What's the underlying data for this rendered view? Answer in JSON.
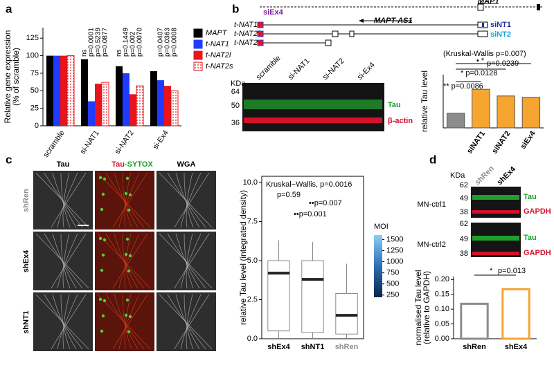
{
  "panel_labels": [
    "a",
    "b",
    "c",
    "d"
  ],
  "gene_diagram": {
    "gene": "MAPT",
    "antisense": "MAPT-AS1",
    "sirnas": [
      "siEx4",
      "siNT1",
      "siNT2"
    ],
    "transcripts": [
      "t-NAT1",
      "t-NAT2l",
      "t-NAT2s"
    ]
  },
  "blot_b": {
    "unit": "KDa",
    "markers": [
      "64",
      "50",
      "36"
    ],
    "lanes": [
      "scramble",
      "si-NAT1",
      "si-NAT2",
      "si-Ex4"
    ],
    "bands": [
      "Tau",
      "β-actin"
    ]
  },
  "micrographs": {
    "columns": [
      "Tau",
      "-SYTOX",
      "WGA"
    ],
    "column_prefix": "Tau",
    "rows": [
      "shRen",
      "shEx4",
      "shNT1"
    ]
  },
  "blot_d": {
    "unit": "KDa",
    "lanes": [
      "shRen",
      "shEx4"
    ],
    "blots": [
      {
        "name": "MN-ctrl1",
        "markers": [
          "62",
          "49",
          "38"
        ],
        "bands": [
          "Tau",
          "GAPDH"
        ]
      },
      {
        "name": "MN-ctrl2",
        "markers": [
          "62",
          "49",
          "38"
        ],
        "bands": [
          "Tau",
          "GAPDH"
        ]
      }
    ]
  },
  "chart_data": [
    {
      "type": "grouped_bar",
      "ylabel": [
        "Relative gene expression",
        "(% of scramble)"
      ],
      "categories": [
        "scramble",
        "si-NAT1",
        "si-NAT2",
        "si-Ex4"
      ],
      "series": [
        {
          "name": "MAPT",
          "color": "#000000",
          "values": [
            100,
            95,
            85,
            78
          ]
        },
        {
          "name": "t-NAT1",
          "color": "#1f3bff",
          "values": [
            100,
            35,
            75,
            65
          ]
        },
        {
          "name": "t-NAT2l",
          "color": "#e8141b",
          "values": [
            100,
            60,
            45,
            57
          ]
        },
        {
          "name": "t-NAT2s",
          "color": "#e8141b",
          "hatch": "dots",
          "values": [
            100,
            62,
            57,
            50
          ]
        }
      ],
      "p_values": [
        [],
        [
          "ns",
          "p=0.0001",
          "p=0.5239",
          "p=0.0877"
        ],
        [
          "ns",
          "p=0.1449",
          "p=0.002",
          "p=0.0070"
        ],
        [
          "p=0.0407",
          "p=0.0363",
          "p=0.0008"
        ]
      ],
      "ylim": [
        0,
        140
      ],
      "yticks": [
        0,
        25,
        50,
        75,
        100,
        125
      ]
    },
    {
      "type": "bar",
      "ylabel": "relative Tau level",
      "categories": [
        null,
        "siNAT1",
        "siNAT2",
        "siEx4"
      ],
      "values": [
        0.55,
        1.45,
        1.2,
        1.15
      ],
      "colors": [
        "#8c8c8c",
        "#f6a531",
        "#f6a531",
        "#f6a531"
      ],
      "ylim": [
        0,
        2
      ],
      "annotations": [
        "(Kruskal-Wallis p=0.007)",
        "• *",
        "p=0.0239",
        "* p=0.0128",
        "** p=0.0086"
      ]
    },
    {
      "type": "box",
      "title": "Kruskal−Wallis, p=0.0016",
      "ylabel": "relative Tau level (integrated density)",
      "categories": [
        "shEx4",
        "shNT1",
        "shRen"
      ],
      "label_colors": [
        "#000000",
        "#000000",
        "#8c8c8c"
      ],
      "boxes": [
        {
          "min": 0,
          "q1": 0.5,
          "median": 4.2,
          "q3": 5.0,
          "max": 6.3
        },
        {
          "min": 0,
          "q1": 0.4,
          "median": 3.8,
          "q3": 5.0,
          "max": 6.2
        },
        {
          "min": 0,
          "q1": 0.3,
          "median": 1.5,
          "q3": 2.9,
          "max": 4.8
        }
      ],
      "ylim": [
        0,
        10.4
      ],
      "yticks": [
        {
          "value": 0,
          "label": "0.0"
        },
        {
          "value": 2.5,
          "label": "2.5"
        },
        {
          "value": 5,
          "label": "5.0"
        },
        {
          "value": 7.5,
          "label": "7.5"
        },
        {
          "value": 10,
          "label": "10.0"
        }
      ],
      "annotations": [
        "p=0.59",
        "••p=0.007",
        "••p=0.001"
      ],
      "colorbar": {
        "title": "MOI",
        "range": [
          200,
          1600
        ],
        "ticks": [
          250,
          500,
          750,
          1000,
          1250,
          1500
        ]
      }
    },
    {
      "type": "outline_bar",
      "ylabel": [
        "normalised Tau level",
        "(relative to GAPDH)"
      ],
      "categories": [
        "shRen",
        "shEx4"
      ],
      "values": [
        0.118,
        0.167
      ],
      "colors": [
        "#8c8c8c",
        "#f6a531"
      ],
      "ylim": [
        0,
        0.21
      ],
      "yticks": [
        {
          "value": 0,
          "label": "0.00"
        },
        {
          "value": 0.05,
          "label": "0.05"
        },
        {
          "value": 0.1,
          "label": "0.10"
        },
        {
          "value": 0.15,
          "label": "0.15"
        },
        {
          "value": 0.2,
          "label": "0.20"
        }
      ],
      "annotations": [
        "*",
        "p=0.013"
      ]
    }
  ]
}
